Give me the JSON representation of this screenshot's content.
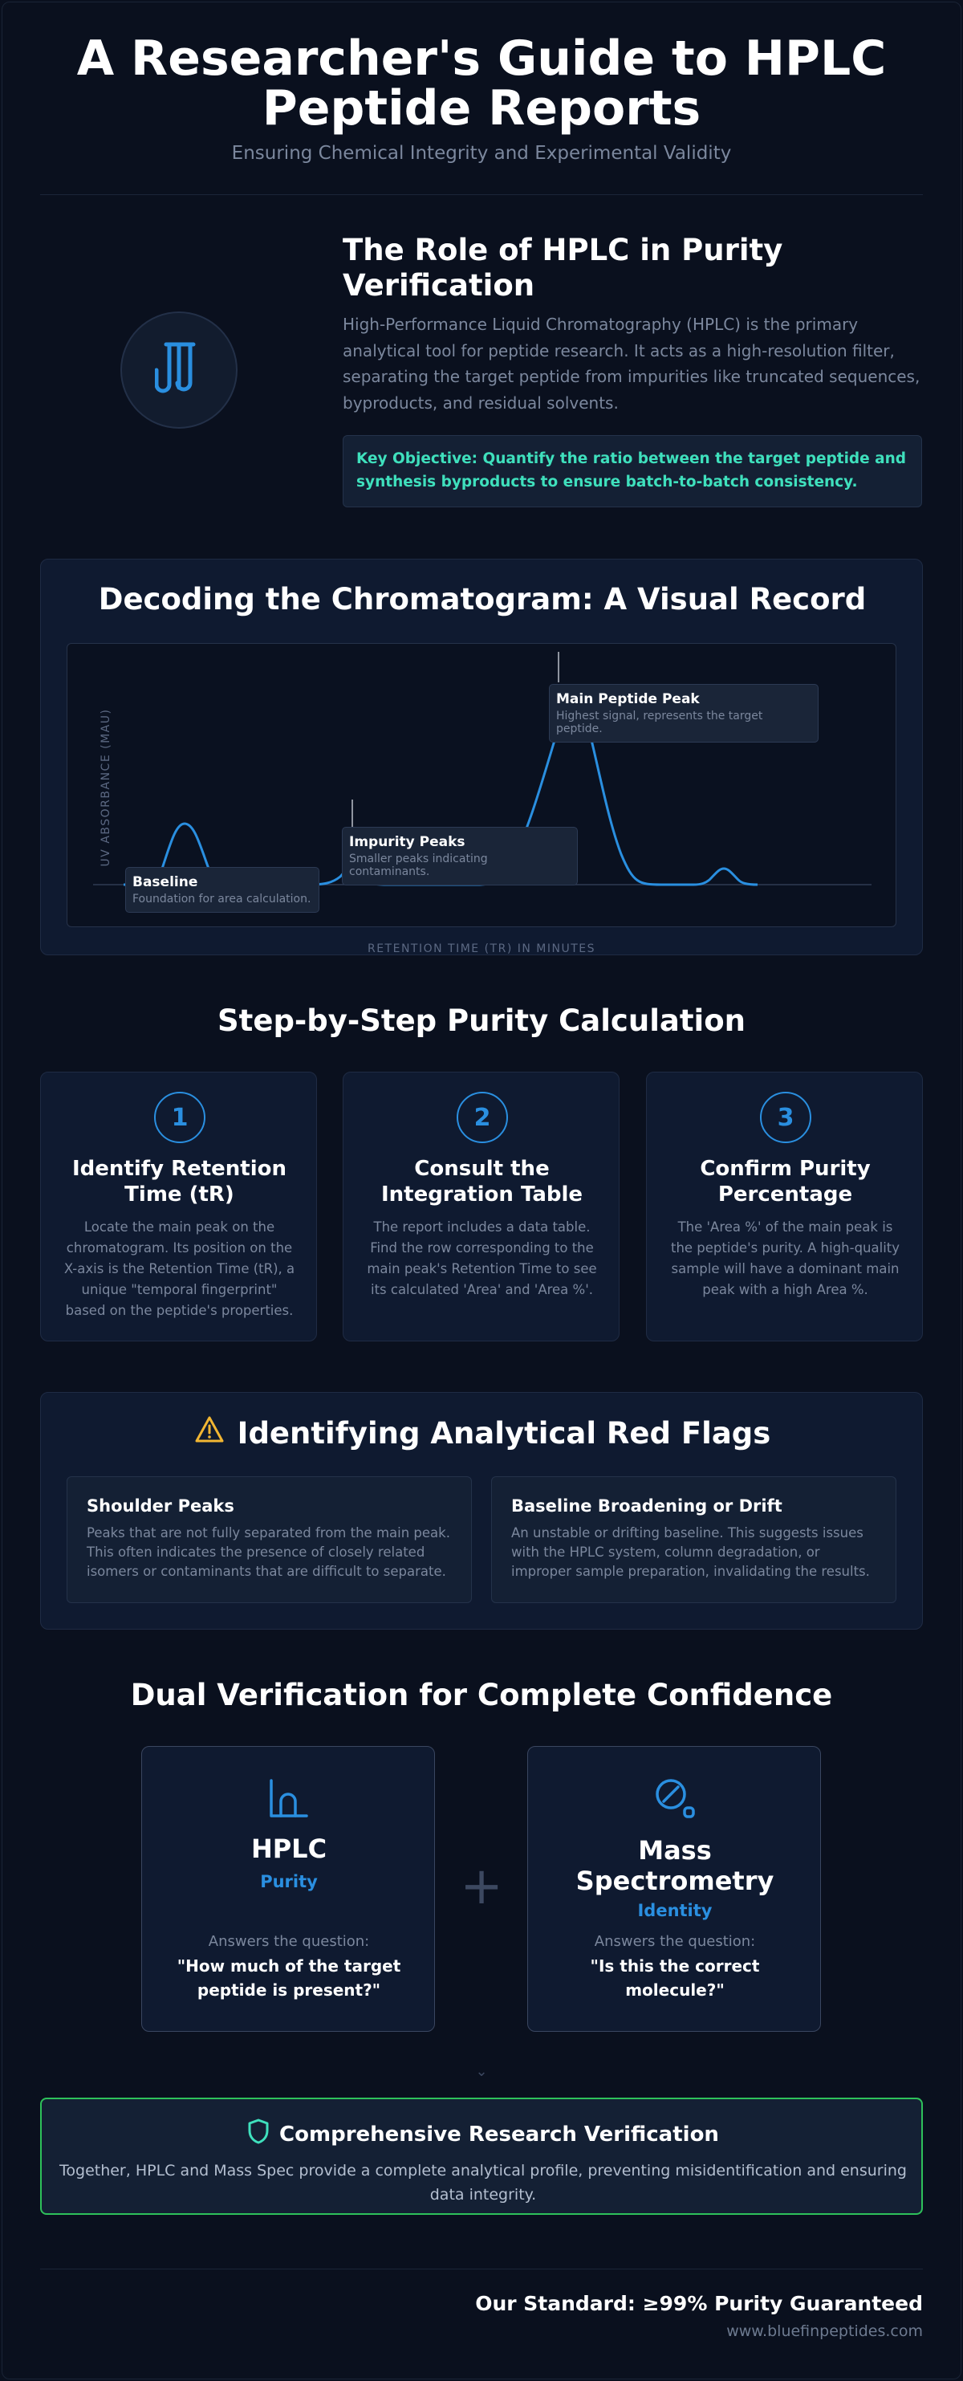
{
  "header": {
    "title_line1": "A Researcher's Guide to HPLC",
    "title_line2": "Peptide Reports",
    "subtitle": "Ensuring Chemical Integrity and Experimental Validity"
  },
  "role": {
    "title": "The Role of HPLC in Purity Verification",
    "body": "High-Performance Liquid Chromatography (HPLC) is the primary analytical tool for peptide research. It acts as a high-resolution filter, separating the target peptide from impurities like truncated sequences, byproducts, and residual solvents.",
    "objective": "Key Objective: Quantify the ratio between the target peptide and synthesis byproducts to ensure batch-to-batch consistency.",
    "icon": "test-tubes-icon"
  },
  "chromatogram": {
    "title": "Decoding the Chromatogram: A Visual Record",
    "y_axis_label": "UV ABSORBANCE (MAU)",
    "x_axis_label": "RETENTION TIME (TR) IN MINUTES",
    "line_color": "#2a8fe0",
    "annotations": {
      "baseline": {
        "title": "Baseline",
        "desc": "Foundation for area calculation."
      },
      "impurity": {
        "title": "Impurity Peaks",
        "desc": "Smaller peaks indicating contaminants."
      },
      "main": {
        "title": "Main Peptide Peak",
        "desc": "Highest signal, represents the target peptide."
      }
    }
  },
  "steps": {
    "title": "Step-by-Step Purity Calculation",
    "items": [
      {
        "num": "1",
        "title": "Identify Retention Time (tR)",
        "body": "Locate the main peak on the chromatogram. Its position on the X-axis is the Retention Time (tR), a unique \"temporal fingerprint\" based on the peptide's properties."
      },
      {
        "num": "2",
        "title": "Consult the Integration Table",
        "body": "The report includes a data table. Find the row corresponding to the main peak's Retention Time to see its calculated 'Area' and 'Area %'."
      },
      {
        "num": "3",
        "title": "Confirm Purity Percentage",
        "body": "The 'Area %' of the main peak is the peptide's purity. A high-quality sample will have a dominant main peak with a high Area %."
      }
    ]
  },
  "flags": {
    "title": "Identifying Analytical Red Flags",
    "icon": "warning-icon",
    "items": [
      {
        "title": "Shoulder Peaks",
        "body": "Peaks that are not fully separated from the main peak. This often indicates the presence of closely related isomers or contaminants that are difficult to separate."
      },
      {
        "title": "Baseline Broadening or Drift",
        "body": "An unstable or drifting baseline. This suggests issues with the HPLC system, column degradation, or improper sample preparation, invalidating the results."
      }
    ]
  },
  "dual": {
    "title": "Dual Verification for Complete Confidence",
    "plus": "+",
    "hplc": {
      "name": "HPLC",
      "kind": "Purity",
      "q_intro": "Answers the question:",
      "question": "\"How much of the target peptide is present?\"",
      "icon": "flask-chart-icon"
    },
    "ms": {
      "name": "Mass Spectrometry",
      "kind": "Identity",
      "q_intro": "Answers the question:",
      "question": "\"Is this the correct molecule?\"",
      "icon": "magnifier-icon"
    },
    "chevron": "⌄"
  },
  "comprehensive": {
    "title": "Comprehensive Research Verification",
    "body": "Together, HPLC and Mass Spec provide a complete analytical profile, preventing misidentification and ensuring data integrity.",
    "icon": "shield-icon",
    "accent": "#2ec15a"
  },
  "footer": {
    "standard": "Our Standard: ≥99% Purity Guaranteed",
    "url": "www.bluefinpeptides.com"
  }
}
